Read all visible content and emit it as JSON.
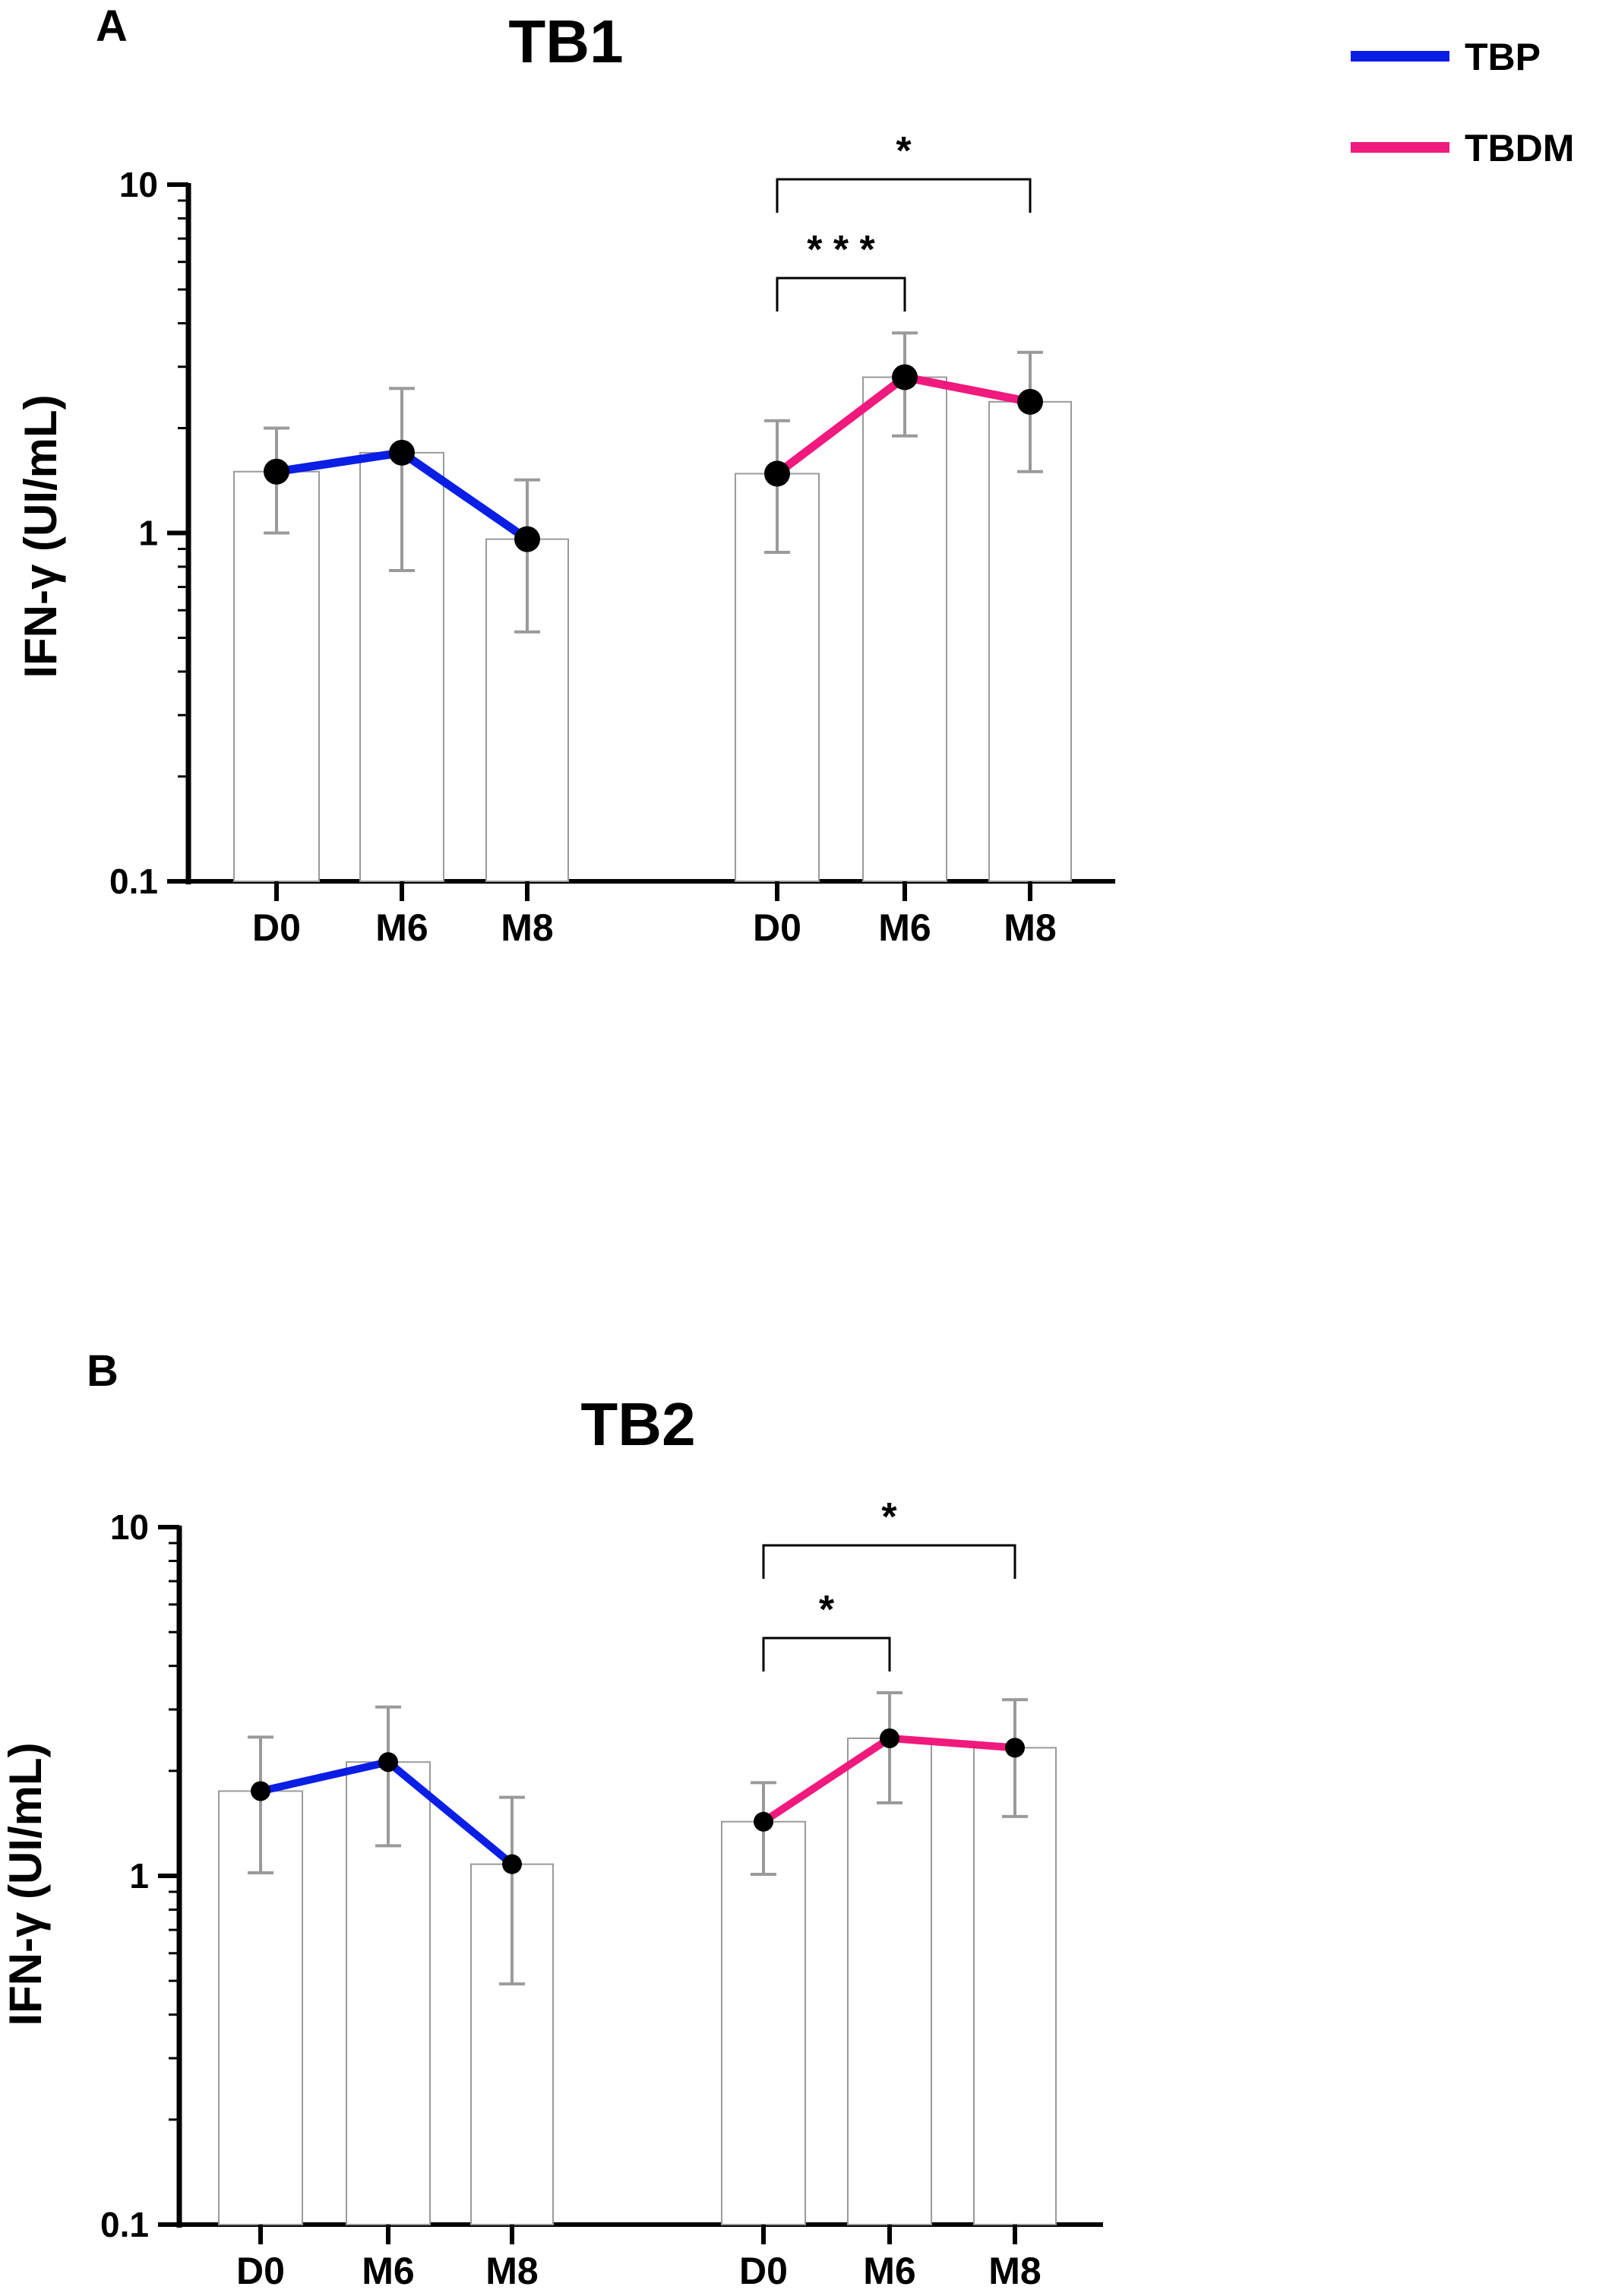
{
  "legend": [
    {
      "label": "TBP",
      "color": "#0A1EE6"
    },
    {
      "label": "TBDM",
      "color": "#F0197D"
    }
  ],
  "chart_data": [
    {
      "type": "bar",
      "panel": "A",
      "title": "TB1",
      "ylabel": "IFN-γ (UI/mL)",
      "yscale": "log",
      "ylim": [
        0.1,
        10
      ],
      "yticks": [
        "0.1",
        "1",
        "10"
      ],
      "groups": [
        {
          "name": "TBP",
          "color": "#0A1EE6",
          "categories": [
            "D0",
            "M6",
            "M8"
          ],
          "values": [
            1.5,
            1.7,
            0.96
          ],
          "err_low": [
            1.0,
            0.78,
            0.52
          ],
          "err_high": [
            2.0,
            2.6,
            1.42
          ]
        },
        {
          "name": "TBDM",
          "color": "#F0197D",
          "categories": [
            "D0",
            "M6",
            "M8"
          ],
          "values": [
            1.48,
            2.8,
            2.38
          ],
          "err_low": [
            0.88,
            1.9,
            1.5
          ],
          "err_high": [
            2.1,
            3.75,
            3.3
          ]
        }
      ],
      "significance": [
        {
          "group": "TBDM",
          "from": "D0",
          "to": "M6",
          "label": "* * *"
        },
        {
          "group": "TBDM",
          "from": "D0",
          "to": "M8",
          "label": "*"
        }
      ]
    },
    {
      "type": "bar",
      "panel": "B",
      "title": "TB2",
      "ylabel": "IFN-γ (UI/mL)",
      "yscale": "log",
      "ylim": [
        0.1,
        10
      ],
      "yticks": [
        "0.1",
        "1",
        "10"
      ],
      "groups": [
        {
          "name": "TBP",
          "color": "#0A1EE6",
          "categories": [
            "D0",
            "M6",
            "M8"
          ],
          "values": [
            1.75,
            2.12,
            1.08
          ],
          "err_low": [
            1.02,
            1.22,
            0.49
          ],
          "err_high": [
            2.5,
            3.05,
            1.68
          ]
        },
        {
          "name": "TBDM",
          "color": "#F0197D",
          "categories": [
            "D0",
            "M6",
            "M8"
          ],
          "values": [
            1.43,
            2.48,
            2.33
          ],
          "err_low": [
            1.01,
            1.62,
            1.48
          ],
          "err_high": [
            1.85,
            3.35,
            3.2
          ]
        }
      ],
      "significance": [
        {
          "group": "TBDM",
          "from": "D0",
          "to": "M6",
          "label": "*"
        },
        {
          "group": "TBDM",
          "from": "D0",
          "to": "M8",
          "label": "*"
        }
      ]
    }
  ]
}
